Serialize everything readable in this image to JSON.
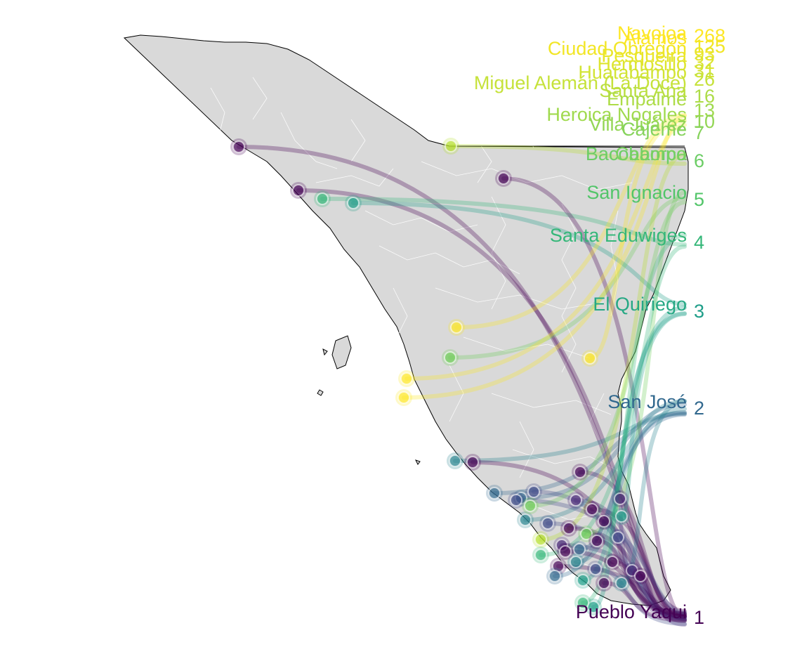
{
  "map": {
    "region": "Sonora",
    "land_color": "#d9d9d9",
    "border_color": "#ffffff",
    "outline_color": "#000000"
  },
  "legend_scale": {
    "palette": "viridis",
    "low_color": "#440154",
    "high_color": "#fde725"
  },
  "chart_data": {
    "type": "scatter",
    "title": "",
    "xlabel": "",
    "ylabel": "",
    "description_of_marks": "Municipality points connected by curved lines to ranked labels on the right",
    "count_ticks": [
      {
        "value": 1,
        "label": "1"
      },
      {
        "value": 2,
        "label": "2"
      },
      {
        "value": 3,
        "label": "3"
      },
      {
        "value": 4,
        "label": "4"
      },
      {
        "value": 5,
        "label": "5"
      },
      {
        "value": 6,
        "label": "6"
      },
      {
        "value": 7,
        "label": "7"
      },
      {
        "value": 10,
        "label": "10"
      },
      {
        "value": 13,
        "label": "13"
      },
      {
        "value": 16,
        "label": "16"
      },
      {
        "value": 26,
        "label": "26"
      },
      {
        "value": 31,
        "label": "31"
      },
      {
        "value": 32,
        "label": "32"
      },
      {
        "value": 93,
        "label": "93"
      },
      {
        "value": 125,
        "label": "125"
      },
      {
        "value": 268,
        "label": "268"
      }
    ],
    "labels": [
      {
        "name": "Navojoa",
        "count": 268
      },
      {
        "name": "Álamos",
        "count": 268
      },
      {
        "name": "Ciudad Obregón",
        "count": 125
      },
      {
        "name": "Pesqueira",
        "count": 93
      },
      {
        "name": "Hermosillo",
        "count": 32
      },
      {
        "name": "Huatabampo",
        "count": 31
      },
      {
        "name": "Miguel Alemán (La Doce)",
        "count": 26
      },
      {
        "name": "Santa Ana",
        "count": 26
      },
      {
        "name": "Empalme",
        "count": 16
      },
      {
        "name": "Heroica Nogales",
        "count": 13
      },
      {
        "name": "Villa Juárez",
        "count": 10
      },
      {
        "name": "Cajeme",
        "count": 7
      },
      {
        "name": "Bacobampo",
        "count": 6
      },
      {
        "name": "Caborca",
        "count": 6
      },
      {
        "name": "San Ignacio",
        "count": 5
      },
      {
        "name": "Santa Eduwiges",
        "count": 4
      },
      {
        "name": "El Quiriego",
        "count": 3
      },
      {
        "name": "San José",
        "count": 2
      },
      {
        "name": "Pueblo Yaqui",
        "count": 1
      }
    ]
  },
  "visible_text": {
    "label_navojoa": "Navojoa",
    "label_alamos": "Álamos",
    "label_obregon": "Ciudad Obregón",
    "label_pesqueira": "Pesqueira",
    "label_hermosillo": "Hermosillo",
    "label_huatabampo": "Huatabampo",
    "label_miguel": "Miguel Alemán (La Doce)",
    "label_santaana": "Santa Ana",
    "label_empalme": "Empalme",
    "label_nogales": "Heroica Nogales",
    "label_villajuarez": "Villa Juárez",
    "label_cajeme": "Cajeme",
    "label_bacobampo": "Bacobampo",
    "label_caborca": "Caborca",
    "label_sanignacio": "San Ignacio",
    "label_santaeduwiges": "Santa Eduwiges",
    "label_quiriego": "El Quiriego",
    "label_sanjose": "San José",
    "label_pueblo": "Pueblo Yaqui",
    "count_268": "268",
    "count_125": "125",
    "count_93": "93",
    "count_32": "32",
    "count_31": "31",
    "count_26": "26",
    "count_16": "16",
    "count_13": "13",
    "count_10": "10",
    "count_7": "7",
    "count_6": "6",
    "count_5": "5",
    "count_4": "4",
    "count_3": "3",
    "count_2": "2",
    "count_1": "1"
  }
}
